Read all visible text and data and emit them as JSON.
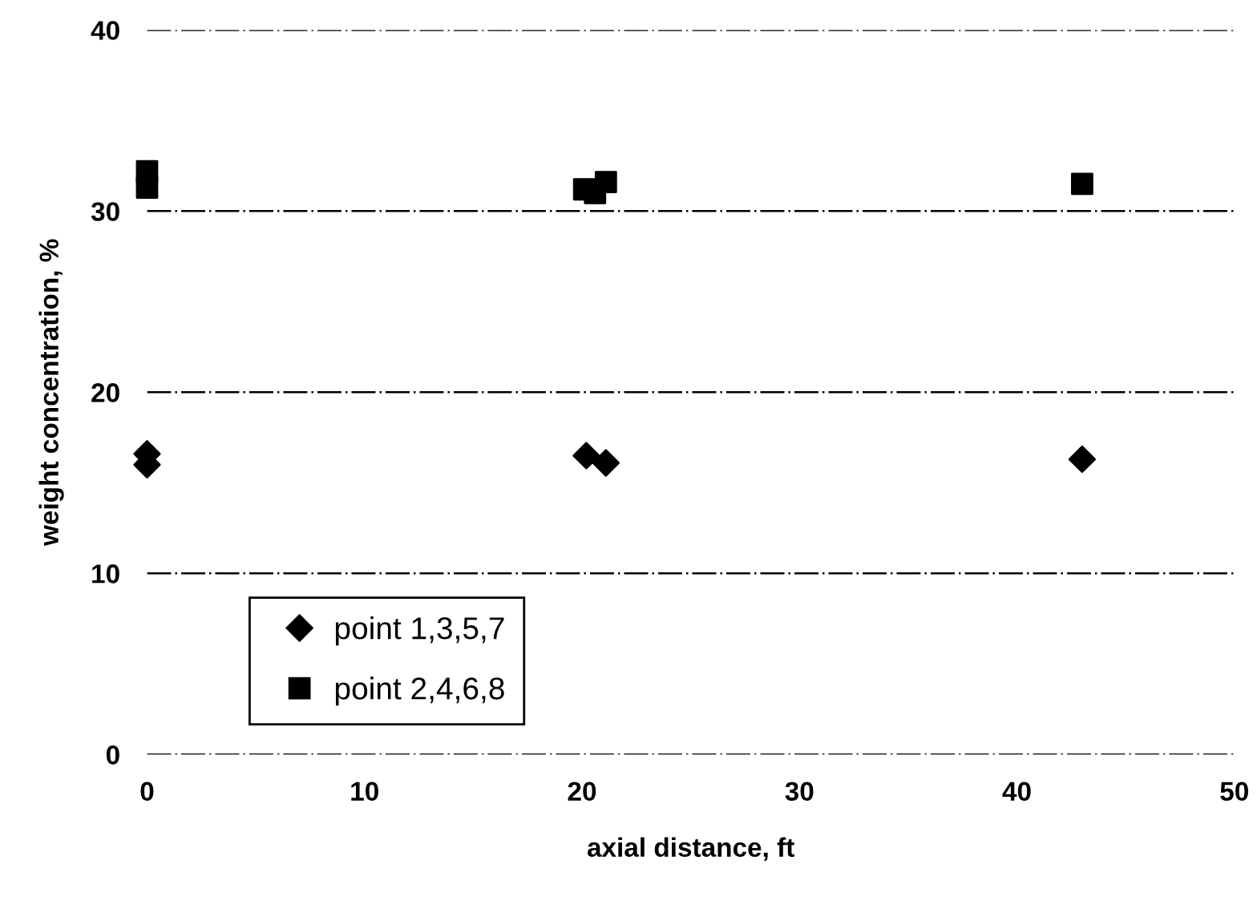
{
  "chart_data": {
    "type": "scatter",
    "xlabel": "axial distance, ft",
    "ylabel": "weight concentration, %",
    "series": [
      {
        "name": "point 1,3,5,7",
        "color": "#000000",
        "marker": "diamond",
        "x": [
          0,
          0,
          20.2,
          21.1,
          43
        ],
        "values": [
          16.6,
          16.0,
          16.5,
          16.1,
          16.3
        ]
      },
      {
        "name": "point 2,4,6,8",
        "color": "#000000",
        "marker": "square",
        "x": [
          0,
          0,
          20.1,
          20.6,
          21.1,
          43
        ],
        "values": [
          32.2,
          31.3,
          31.2,
          31.0,
          31.6,
          31.5
        ]
      }
    ],
    "xlim": [
      0,
      50
    ],
    "xticks": [
      0,
      10,
      20,
      30,
      40,
      50
    ],
    "ylim": [
      0,
      40
    ],
    "yticks": [
      0,
      10,
      20,
      30,
      40
    ],
    "grid": "y",
    "legend": "bottom left"
  }
}
